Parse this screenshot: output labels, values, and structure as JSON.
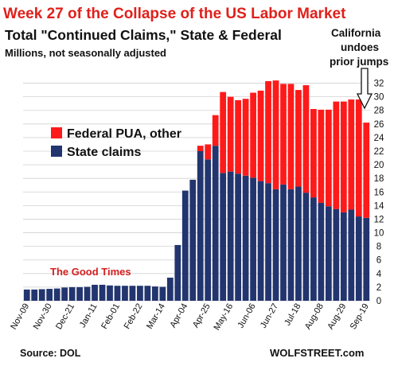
{
  "title": "Week 27 of the Collapse of the US Labor Market",
  "subtitle": "Total \"Continued Claims,\" State & Federal",
  "unit_note": "Millions, not seasonally adjusted",
  "annotation_lines": [
    "California",
    "undoes",
    "prior jumps"
  ],
  "good_times_label": "The Good Times",
  "source": "Source: DOL",
  "brand": "WOLFSTREET.com",
  "colors": {
    "federal": "#ff1a1a",
    "state": "#22356e",
    "title": "#e0201b",
    "good_times": "#d42020"
  },
  "chart_data": {
    "type": "bar",
    "stacked": true,
    "categories": [
      "Nov-09",
      "Nov-16",
      "Nov-23",
      "Nov-30",
      "Dec-07",
      "Dec-14",
      "Dec-21",
      "Dec-28",
      "Jan-04",
      "Jan-11",
      "Jan-18",
      "Jan-25",
      "Feb-01",
      "Feb-08",
      "Feb-15",
      "Feb-22",
      "Feb-29",
      "Mar-07",
      "Mar-14",
      "Mar-21",
      "Mar-28",
      "Apr-04",
      "Apr-11",
      "Apr-18",
      "Apr-25",
      "May-02",
      "May-09",
      "May-16",
      "May-23",
      "May-30",
      "Jun-06",
      "Jun-13",
      "Jun-20",
      "Jun-27",
      "Jul-04",
      "Jul-11",
      "Jul-18",
      "Jul-25",
      "Aug-01",
      "Aug-08",
      "Aug-15",
      "Aug-22",
      "Aug-29",
      "Sep-05",
      "Sep-12",
      "Sep-19"
    ],
    "tick_labels": [
      "Nov-09",
      "Nov-30",
      "Dec-21",
      "Jan-11",
      "Feb-01",
      "Feb-22",
      "Mar-14",
      "Apr-04",
      "Apr-25",
      "May-16",
      "Jun-06",
      "Jun-27",
      "Jul-18",
      "Aug-08",
      "Aug-29",
      "Sep-19"
    ],
    "series": [
      {
        "name": "State claims",
        "color": "#22356e",
        "values": [
          1.65,
          1.65,
          1.7,
          1.75,
          1.8,
          1.95,
          2.0,
          2.0,
          2.05,
          2.35,
          2.35,
          2.25,
          2.2,
          2.2,
          2.2,
          2.2,
          2.2,
          2.1,
          2.05,
          3.4,
          8.2,
          16.2,
          17.8,
          22.0,
          20.8,
          22.8,
          18.8,
          19.0,
          18.7,
          18.4,
          18.1,
          17.6,
          17.3,
          16.4,
          17.1,
          16.4,
          16.8,
          15.9,
          15.2,
          14.4,
          13.9,
          13.5,
          13.0,
          13.4,
          12.4,
          12.2
        ]
      },
      {
        "name": "Federal PUA, other",
        "color": "#ff1a1a",
        "values": [
          0,
          0,
          0,
          0,
          0,
          0,
          0,
          0,
          0,
          0,
          0,
          0,
          0,
          0,
          0,
          0,
          0,
          0,
          0,
          0,
          0,
          0,
          0,
          0.8,
          2.2,
          4.5,
          11.9,
          11.0,
          10.8,
          11.3,
          12.5,
          13.3,
          15.0,
          16.0,
          14.8,
          15.5,
          14.2,
          15.8,
          13.0,
          13.7,
          14.2,
          15.8,
          16.3,
          16.2,
          17.2,
          14.0
        ]
      }
    ],
    "ylim": [
      0,
      33
    ],
    "yticks": [
      0,
      2,
      4,
      6,
      8,
      10,
      12,
      14,
      16,
      18,
      20,
      22,
      24,
      26,
      28,
      30,
      32
    ],
    "y_axis_side": "right",
    "grid": "horizontal",
    "legend_position": "left-middle"
  }
}
